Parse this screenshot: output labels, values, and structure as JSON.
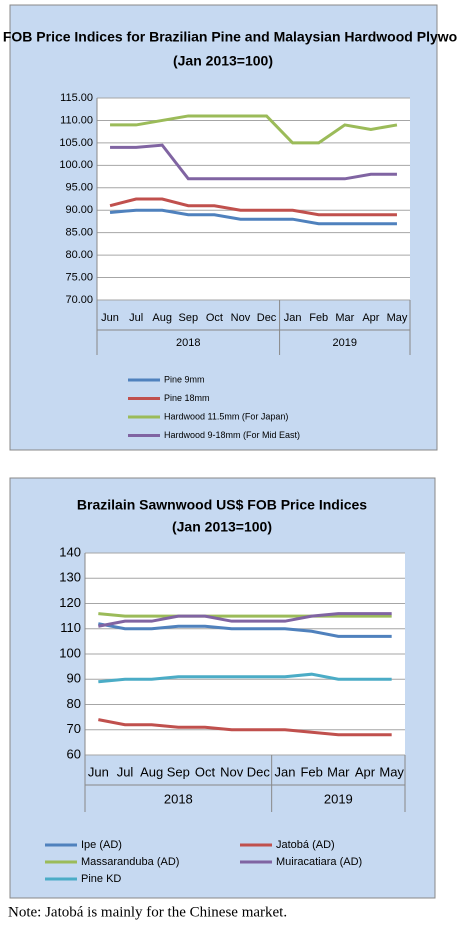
{
  "chart_data": [
    {
      "type": "line",
      "title": "US$ FOB Price Indices for Brazilian Pine and Malaysian Hardwood Plywood",
      "subtitle": "(Jan 2013=100)",
      "categories": [
        "Jun",
        "Jul",
        "Aug",
        "Sep",
        "Oct",
        "Nov",
        "Dec",
        "Jan",
        "Feb",
        "Mar",
        "Apr",
        "May"
      ],
      "x_groups": [
        {
          "label": "2018",
          "count": 7
        },
        {
          "label": "2019",
          "count": 5
        }
      ],
      "ylim": [
        70,
        115
      ],
      "yticks": [
        {
          "value": 70,
          "label": "70.00"
        },
        {
          "value": 75,
          "label": "75.00"
        },
        {
          "value": 80,
          "label": "80.00"
        },
        {
          "value": 85,
          "label": "85.00"
        },
        {
          "value": 90,
          "label": "90.00"
        },
        {
          "value": 95,
          "label": "95.00"
        },
        {
          "value": 100,
          "label": "100.00"
        },
        {
          "value": 105,
          "label": "105.00"
        },
        {
          "value": 110,
          "label": "110.00"
        },
        {
          "value": 115,
          "label": "115.00"
        }
      ],
      "grid": true,
      "series": [
        {
          "name": "Pine 9mm",
          "color": "#4f81bd",
          "values": [
            89.5,
            90,
            90,
            89,
            89,
            88,
            88,
            88,
            87,
            87,
            87,
            87
          ]
        },
        {
          "name": "Pine 18mm",
          "color": "#c0504d",
          "values": [
            91,
            92.5,
            92.5,
            91,
            91,
            90,
            90,
            90,
            89,
            89,
            89,
            89
          ]
        },
        {
          "name": "Hardwood 11.5mm (For Japan)",
          "color": "#9bbb59",
          "values": [
            109,
            109,
            110,
            111,
            111,
            111,
            111,
            105,
            105,
            109,
            108,
            109
          ]
        },
        {
          "name": "Hardwood 9-18mm (For Mid East)",
          "color": "#8064a2",
          "values": [
            104,
            104,
            104.5,
            97,
            97,
            97,
            97,
            97,
            97,
            97,
            98,
            98
          ]
        }
      ]
    },
    {
      "type": "line",
      "title": "Brazilain Sawnwood US$ FOB Price Indices",
      "subtitle": "(Jan 2013=100)",
      "categories": [
        "Jun",
        "Jul",
        "Aug",
        "Sep",
        "Oct",
        "Nov",
        "Dec",
        "Jan",
        "Feb",
        "Mar",
        "Apr",
        "May"
      ],
      "x_groups": [
        {
          "label": "2018",
          "count": 7
        },
        {
          "label": "2019",
          "count": 5
        }
      ],
      "ylim": [
        60,
        140
      ],
      "yticks": [
        60,
        70,
        80,
        90,
        100,
        110,
        120,
        130,
        140
      ],
      "grid": true,
      "series": [
        {
          "name": "Ipe (AD)",
          "color": "#4f81bd",
          "values": [
            112,
            110,
            110,
            111,
            111,
            110,
            110,
            110,
            109,
            107,
            107,
            107
          ]
        },
        {
          "name": "Jatobá (AD)",
          "color": "#c0504d",
          "values": [
            74,
            72,
            72,
            71,
            71,
            70,
            70,
            70,
            69,
            68,
            68,
            68
          ]
        },
        {
          "name": "Massaranduba (AD)",
          "color": "#9bbb59",
          "values": [
            116,
            115,
            115,
            115,
            115,
            115,
            115,
            115,
            115,
            115,
            115,
            115
          ]
        },
        {
          "name": "Muiracatiara (AD)",
          "color": "#8064a2",
          "values": [
            111,
            113,
            113,
            115,
            115,
            113,
            113,
            113,
            115,
            116,
            116,
            116
          ]
        },
        {
          "name": "Pine KD",
          "color": "#4bacc6",
          "values": [
            89,
            90,
            90,
            91,
            91,
            91,
            91,
            91,
            92,
            90,
            90,
            90
          ]
        }
      ]
    }
  ],
  "note": "Note: Jatobá is mainly for the Chinese market."
}
